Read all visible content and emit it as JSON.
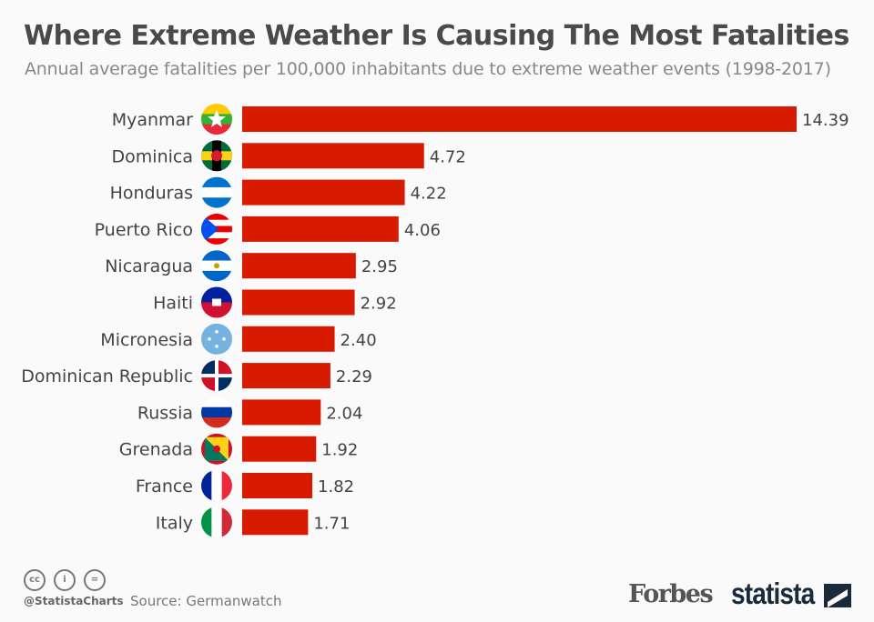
{
  "header": {
    "title": "Where Extreme Weather Is Causing The Most Fatalities",
    "subtitle": "Annual average fatalities per 100,000 inhabitants due to extreme weather events (1998-2017)"
  },
  "chart_data": {
    "type": "bar",
    "orientation": "horizontal",
    "categories": [
      "Myanmar",
      "Dominica",
      "Honduras",
      "Puerto Rico",
      "Nicaragua",
      "Haiti",
      "Micronesia",
      "Dominican Republic",
      "Russia",
      "Grenada",
      "France",
      "Italy"
    ],
    "values": [
      14.39,
      4.72,
      4.22,
      4.06,
      2.95,
      2.92,
      2.4,
      2.29,
      2.04,
      1.92,
      1.82,
      1.71
    ],
    "value_labels": [
      "14.39",
      "4.72",
      "4.22",
      "4.06",
      "2.95",
      "2.92",
      "2.40",
      "2.29",
      "2.04",
      "1.92",
      "1.82",
      "1.71"
    ],
    "bar_color": "#d71a00",
    "grid": false
  },
  "footer": {
    "handle": "@StatistaCharts",
    "source": "Source: Germanwatch",
    "brand1": "Forbes",
    "brand2": "statista",
    "cc_icons": [
      "cc-icon",
      "by-icon",
      "nd-icon"
    ],
    "cc_labels": [
      "cc",
      "i",
      "="
    ]
  }
}
